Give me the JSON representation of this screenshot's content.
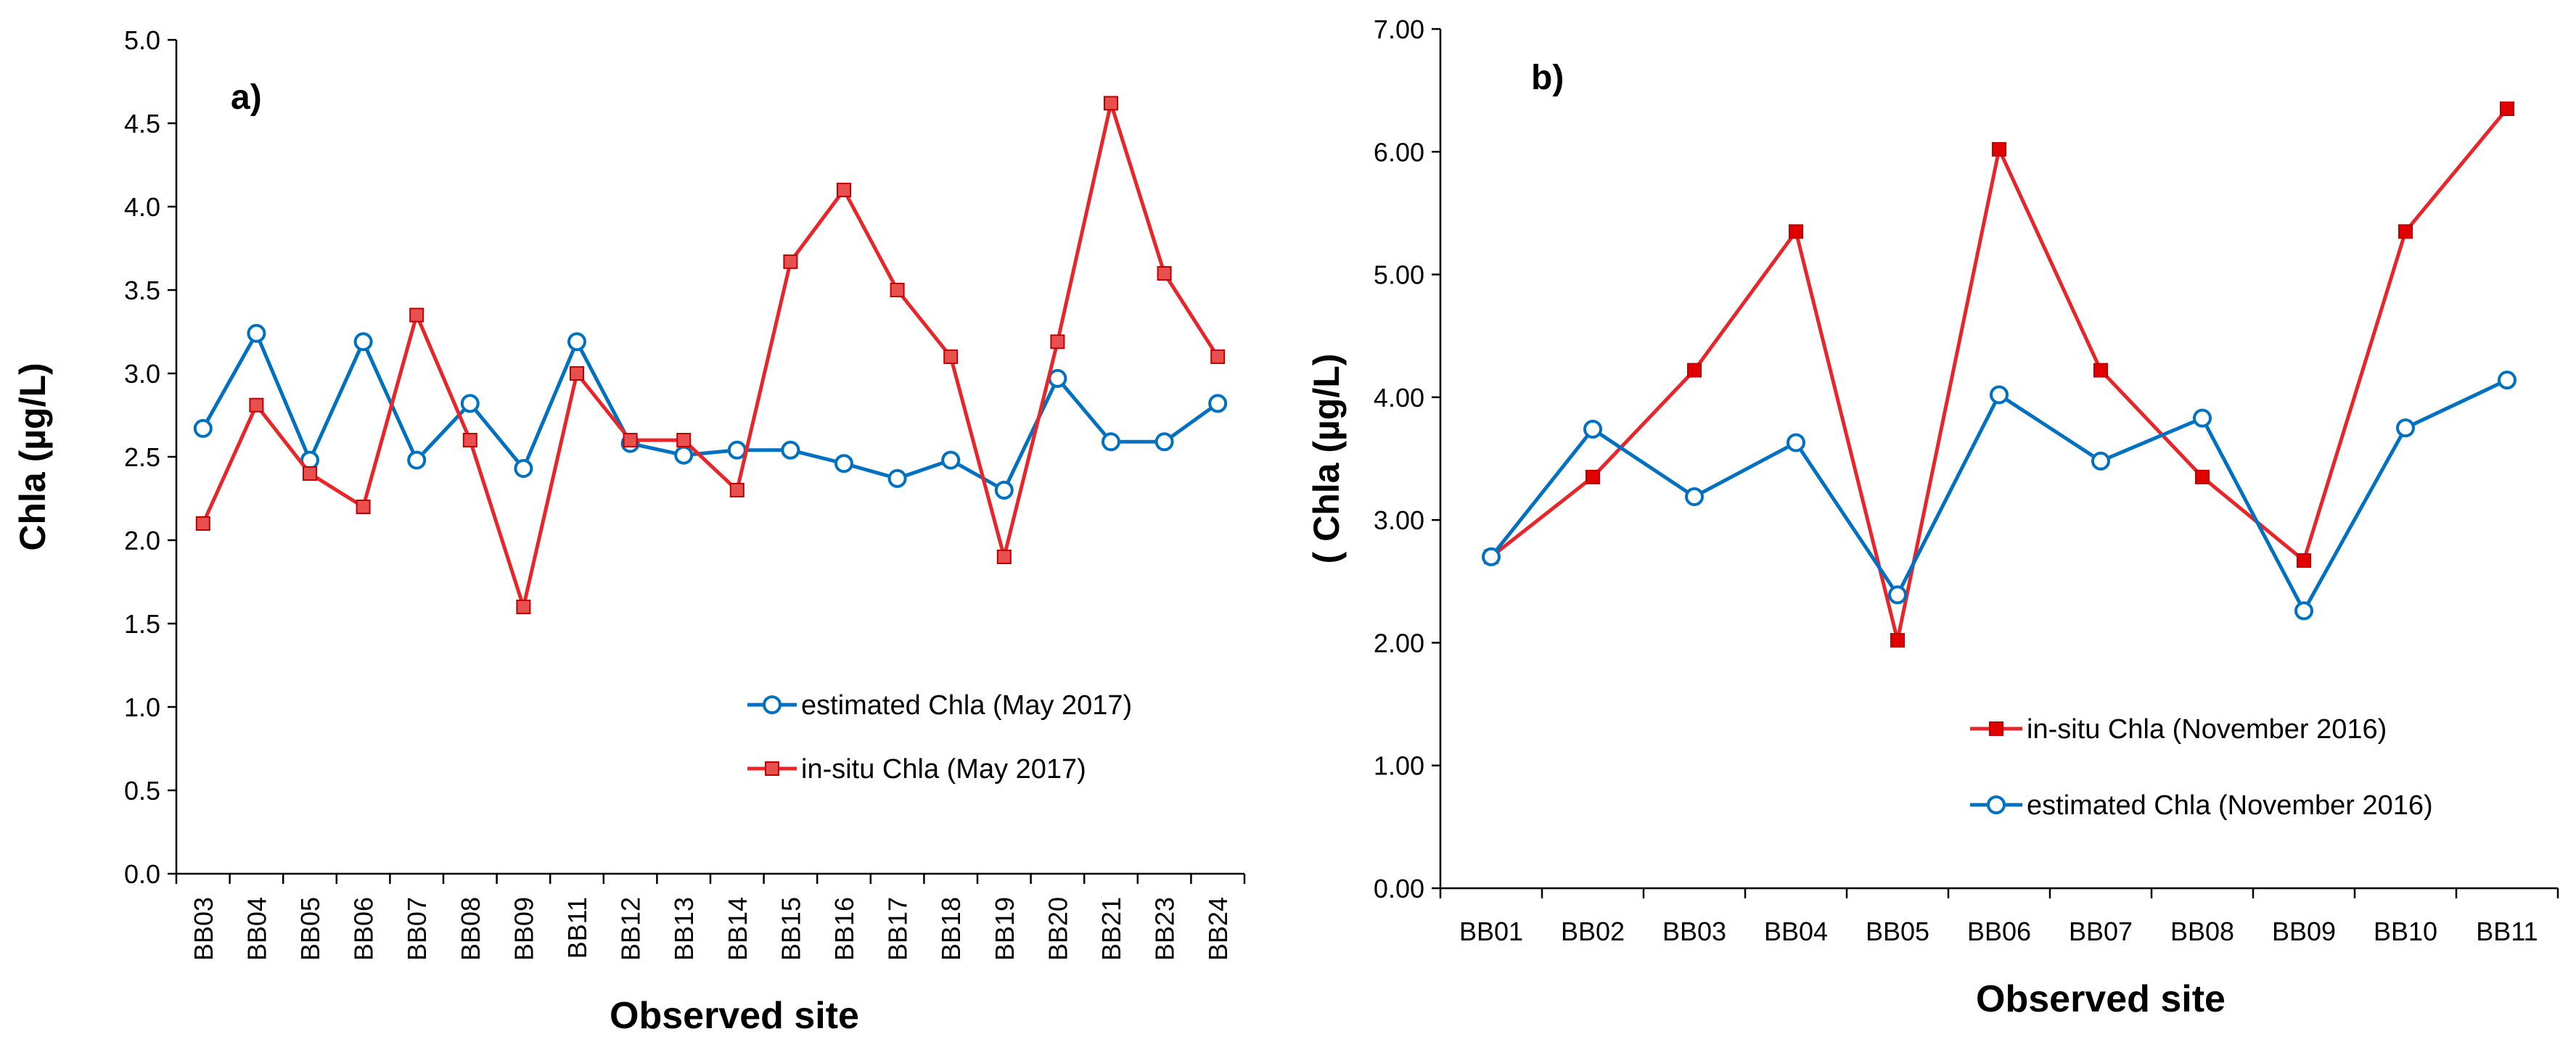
{
  "chart_data": [
    {
      "type": "line",
      "panel_label": "a)",
      "xlabel": "Observed site",
      "ylabel": "Chla (µg/L)",
      "ylim": [
        0,
        5
      ],
      "ytick_labels": [
        "0.0",
        "0.5",
        "1.0",
        "1.5",
        "2.0",
        "2.5",
        "3.0",
        "3.5",
        "4.0",
        "4.5",
        "5.0"
      ],
      "categories": [
        "BB03",
        "BB04",
        "BB05",
        "BB06",
        "BB07",
        "BB08",
        "BB09",
        "BB11",
        "BB12",
        "BB13",
        "BB14",
        "BB15",
        "BB16",
        "BB17",
        "BB18",
        "BB19",
        "BB20",
        "BB21",
        "BB23",
        "BB24"
      ],
      "legend_position": "bottom-right",
      "series": [
        {
          "name": "estimated Chla (May 2017)",
          "color": "#0070c0",
          "marker": "circle-open",
          "values": [
            2.67,
            3.24,
            2.48,
            3.19,
            2.48,
            2.82,
            2.43,
            3.19,
            2.58,
            2.51,
            2.54,
            2.54,
            2.46,
            2.37,
            2.48,
            2.3,
            2.97,
            2.59,
            2.59,
            2.82
          ]
        },
        {
          "name": "in-situ Chla (May 2017)",
          "color": "#e8262a",
          "marker": "square",
          "values": [
            2.1,
            2.81,
            2.4,
            2.2,
            3.35,
            2.6,
            1.6,
            3.0,
            2.6,
            2.6,
            2.3,
            3.67,
            4.1,
            3.5,
            3.1,
            1.9,
            3.19,
            4.62,
            3.6,
            3.1
          ]
        }
      ]
    },
    {
      "type": "line",
      "panel_label": "b)",
      "xlabel": "Observed site",
      "ylabel": "Chla (µg/L)",
      "ylabel_prefix": "(",
      "ylim": [
        0,
        7
      ],
      "ytick_labels": [
        "0.00",
        "1.00",
        "2.00",
        "3.00",
        "4.00",
        "5.00",
        "6.00",
        "7.00"
      ],
      "categories": [
        "BB01",
        "BB02",
        "BB03",
        "BB04",
        "BB05",
        "BB06",
        "BB07",
        "BB08",
        "BB09",
        "BB10",
        "BB11"
      ],
      "legend_position": "bottom-right",
      "series": [
        {
          "name": "in-situ Chla (November 2016)",
          "color": "#e8262a",
          "marker": "square",
          "values": [
            2.7,
            3.35,
            4.22,
            5.35,
            2.02,
            6.02,
            4.22,
            3.35,
            2.67,
            5.35,
            6.35
          ]
        },
        {
          "name": "estimated Chla (November 2016)",
          "color": "#0070c0",
          "marker": "circle-open",
          "values": [
            2.7,
            3.74,
            3.19,
            3.63,
            2.39,
            4.02,
            3.48,
            3.83,
            2.26,
            3.75,
            4.14
          ]
        }
      ]
    }
  ]
}
